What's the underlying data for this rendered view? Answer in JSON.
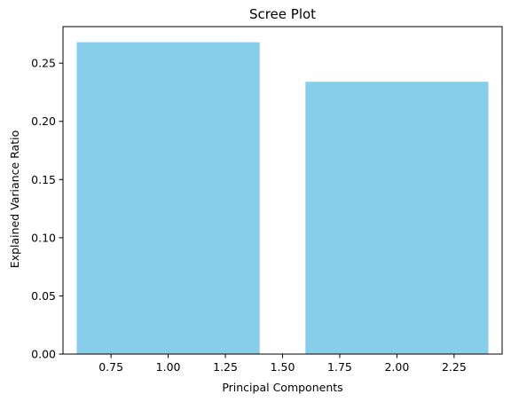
{
  "chart_data": {
    "type": "bar",
    "title": "Scree Plot",
    "xlabel": "Principal Components",
    "ylabel": "Explained Variance Ratio",
    "x": [
      1,
      2
    ],
    "values": [
      0.268,
      0.234
    ],
    "bar_width": 0.8,
    "xlim": [
      0.54,
      2.46
    ],
    "ylim": [
      0,
      0.2814
    ],
    "xticks": [
      0.75,
      1.0,
      1.25,
      1.5,
      1.75,
      2.0,
      2.25
    ],
    "xtick_labels": [
      "0.75",
      "1.00",
      "1.25",
      "1.50",
      "1.75",
      "2.00",
      "2.25"
    ],
    "yticks": [
      0.0,
      0.05,
      0.1,
      0.15,
      0.2,
      0.25
    ],
    "ytick_labels": [
      "0.00",
      "0.05",
      "0.10",
      "0.15",
      "0.20",
      "0.25"
    ],
    "bar_color": "#87CEEB",
    "grid": false,
    "legend": "none"
  }
}
